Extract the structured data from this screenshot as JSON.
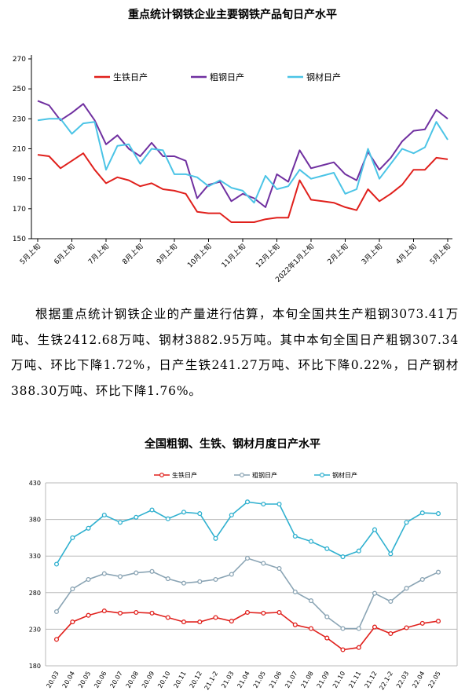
{
  "chart_data": [
    {
      "type": "line",
      "title": "重点统计钢铁企业主要钢铁产品旬日产水平",
      "x_tick_labels": [
        "5月上旬",
        "6月上旬",
        "7月上旬",
        "8月上旬",
        "9月上旬",
        "10月上旬",
        "11月上旬",
        "12月上旬",
        "2022年1月上旬",
        "2月上旬",
        "3月上旬",
        "4月上旬",
        "5月上旬"
      ],
      "ylim": [
        150,
        270
      ],
      "yticks": [
        150,
        170,
        190,
        210,
        230,
        250,
        270
      ],
      "legend_position": "top",
      "grid": false,
      "series": [
        {
          "name": "生铁日产",
          "color": "#e0201c",
          "values": [
            206,
            205,
            197,
            202,
            207,
            196,
            187,
            191,
            189,
            185,
            187,
            183,
            182,
            180,
            168,
            167,
            167,
            161,
            161,
            161,
            163,
            164,
            164,
            189,
            176,
            175,
            174,
            171,
            169,
            183,
            175,
            180,
            186,
            196,
            196,
            204,
            203
          ]
        },
        {
          "name": "粗钢日产",
          "color": "#7030a0",
          "values": [
            242,
            239,
            229,
            234,
            240,
            229,
            213,
            219,
            210,
            205,
            214,
            205,
            205,
            202,
            177,
            186,
            188,
            175,
            180,
            177,
            171,
            193,
            188,
            209,
            197,
            199,
            201,
            193,
            189,
            208,
            196,
            204,
            215,
            222,
            223,
            236,
            230
          ]
        },
        {
          "name": "钢材日产",
          "color": "#4bc4e6",
          "values": [
            229,
            230,
            230,
            220,
            227,
            228,
            196,
            212,
            213,
            200,
            210,
            209,
            193,
            193,
            191,
            185,
            189,
            184,
            182,
            174,
            192,
            183,
            185,
            196,
            190,
            192,
            194,
            180,
            183,
            210,
            190,
            200,
            210,
            207,
            211,
            228,
            216
          ]
        }
      ]
    },
    {
      "type": "line",
      "title": "全国粗钢、生铁、钢材月度日产水平",
      "categories": [
        "20.03",
        "20.04",
        "20.05",
        "20.06",
        "20.07",
        "20.08",
        "20.09",
        "20.10",
        "20.11",
        "20.12",
        "21.1-2",
        "21.03",
        "21.04",
        "21.05",
        "21.06",
        "21.07",
        "21.08",
        "21.09",
        "21.10",
        "21.11",
        "21.12",
        "22.1-2",
        "22.03",
        "22.04",
        "22.05"
      ],
      "ylim": [
        180,
        430
      ],
      "yticks": [
        180,
        230,
        280,
        330,
        380,
        430
      ],
      "legend_position": "top",
      "grid": true,
      "series": [
        {
          "name": "生铁日产",
          "color": "#e0201c",
          "values": [
            216,
            240,
            249,
            255,
            252,
            253,
            252,
            246,
            240,
            240,
            246,
            241,
            253,
            252,
            253,
            236,
            231,
            218,
            202,
            205,
            233,
            224,
            232,
            238,
            241
          ]
        },
        {
          "name": "粗钢日产",
          "color": "#8aa4b4",
          "values": [
            254,
            285,
            298,
            306,
            302,
            307,
            309,
            299,
            293,
            295,
            298,
            305,
            327,
            320,
            313,
            281,
            269,
            247,
            231,
            231,
            279,
            268,
            286,
            298,
            308
          ]
        },
        {
          "name": "钢材日产",
          "color": "#2fb0cf",
          "values": [
            319,
            355,
            368,
            386,
            376,
            383,
            393,
            381,
            390,
            388,
            354,
            386,
            404,
            401,
            401,
            357,
            350,
            340,
            329,
            337,
            366,
            333,
            376,
            389,
            388
          ]
        }
      ]
    }
  ],
  "paragraph": "根据重点统计钢铁企业的产量进行估算，本旬全国共生产粗钢3073.41万吨、生铁2412.68万吨、钢材3882.95万吨。其中本旬全国日产粗钢307.34万吨、环比下降1.72%，日产生铁241.27万吨、环比下降0.22%，日产钢材388.30万吨、环比下降1.76%。"
}
